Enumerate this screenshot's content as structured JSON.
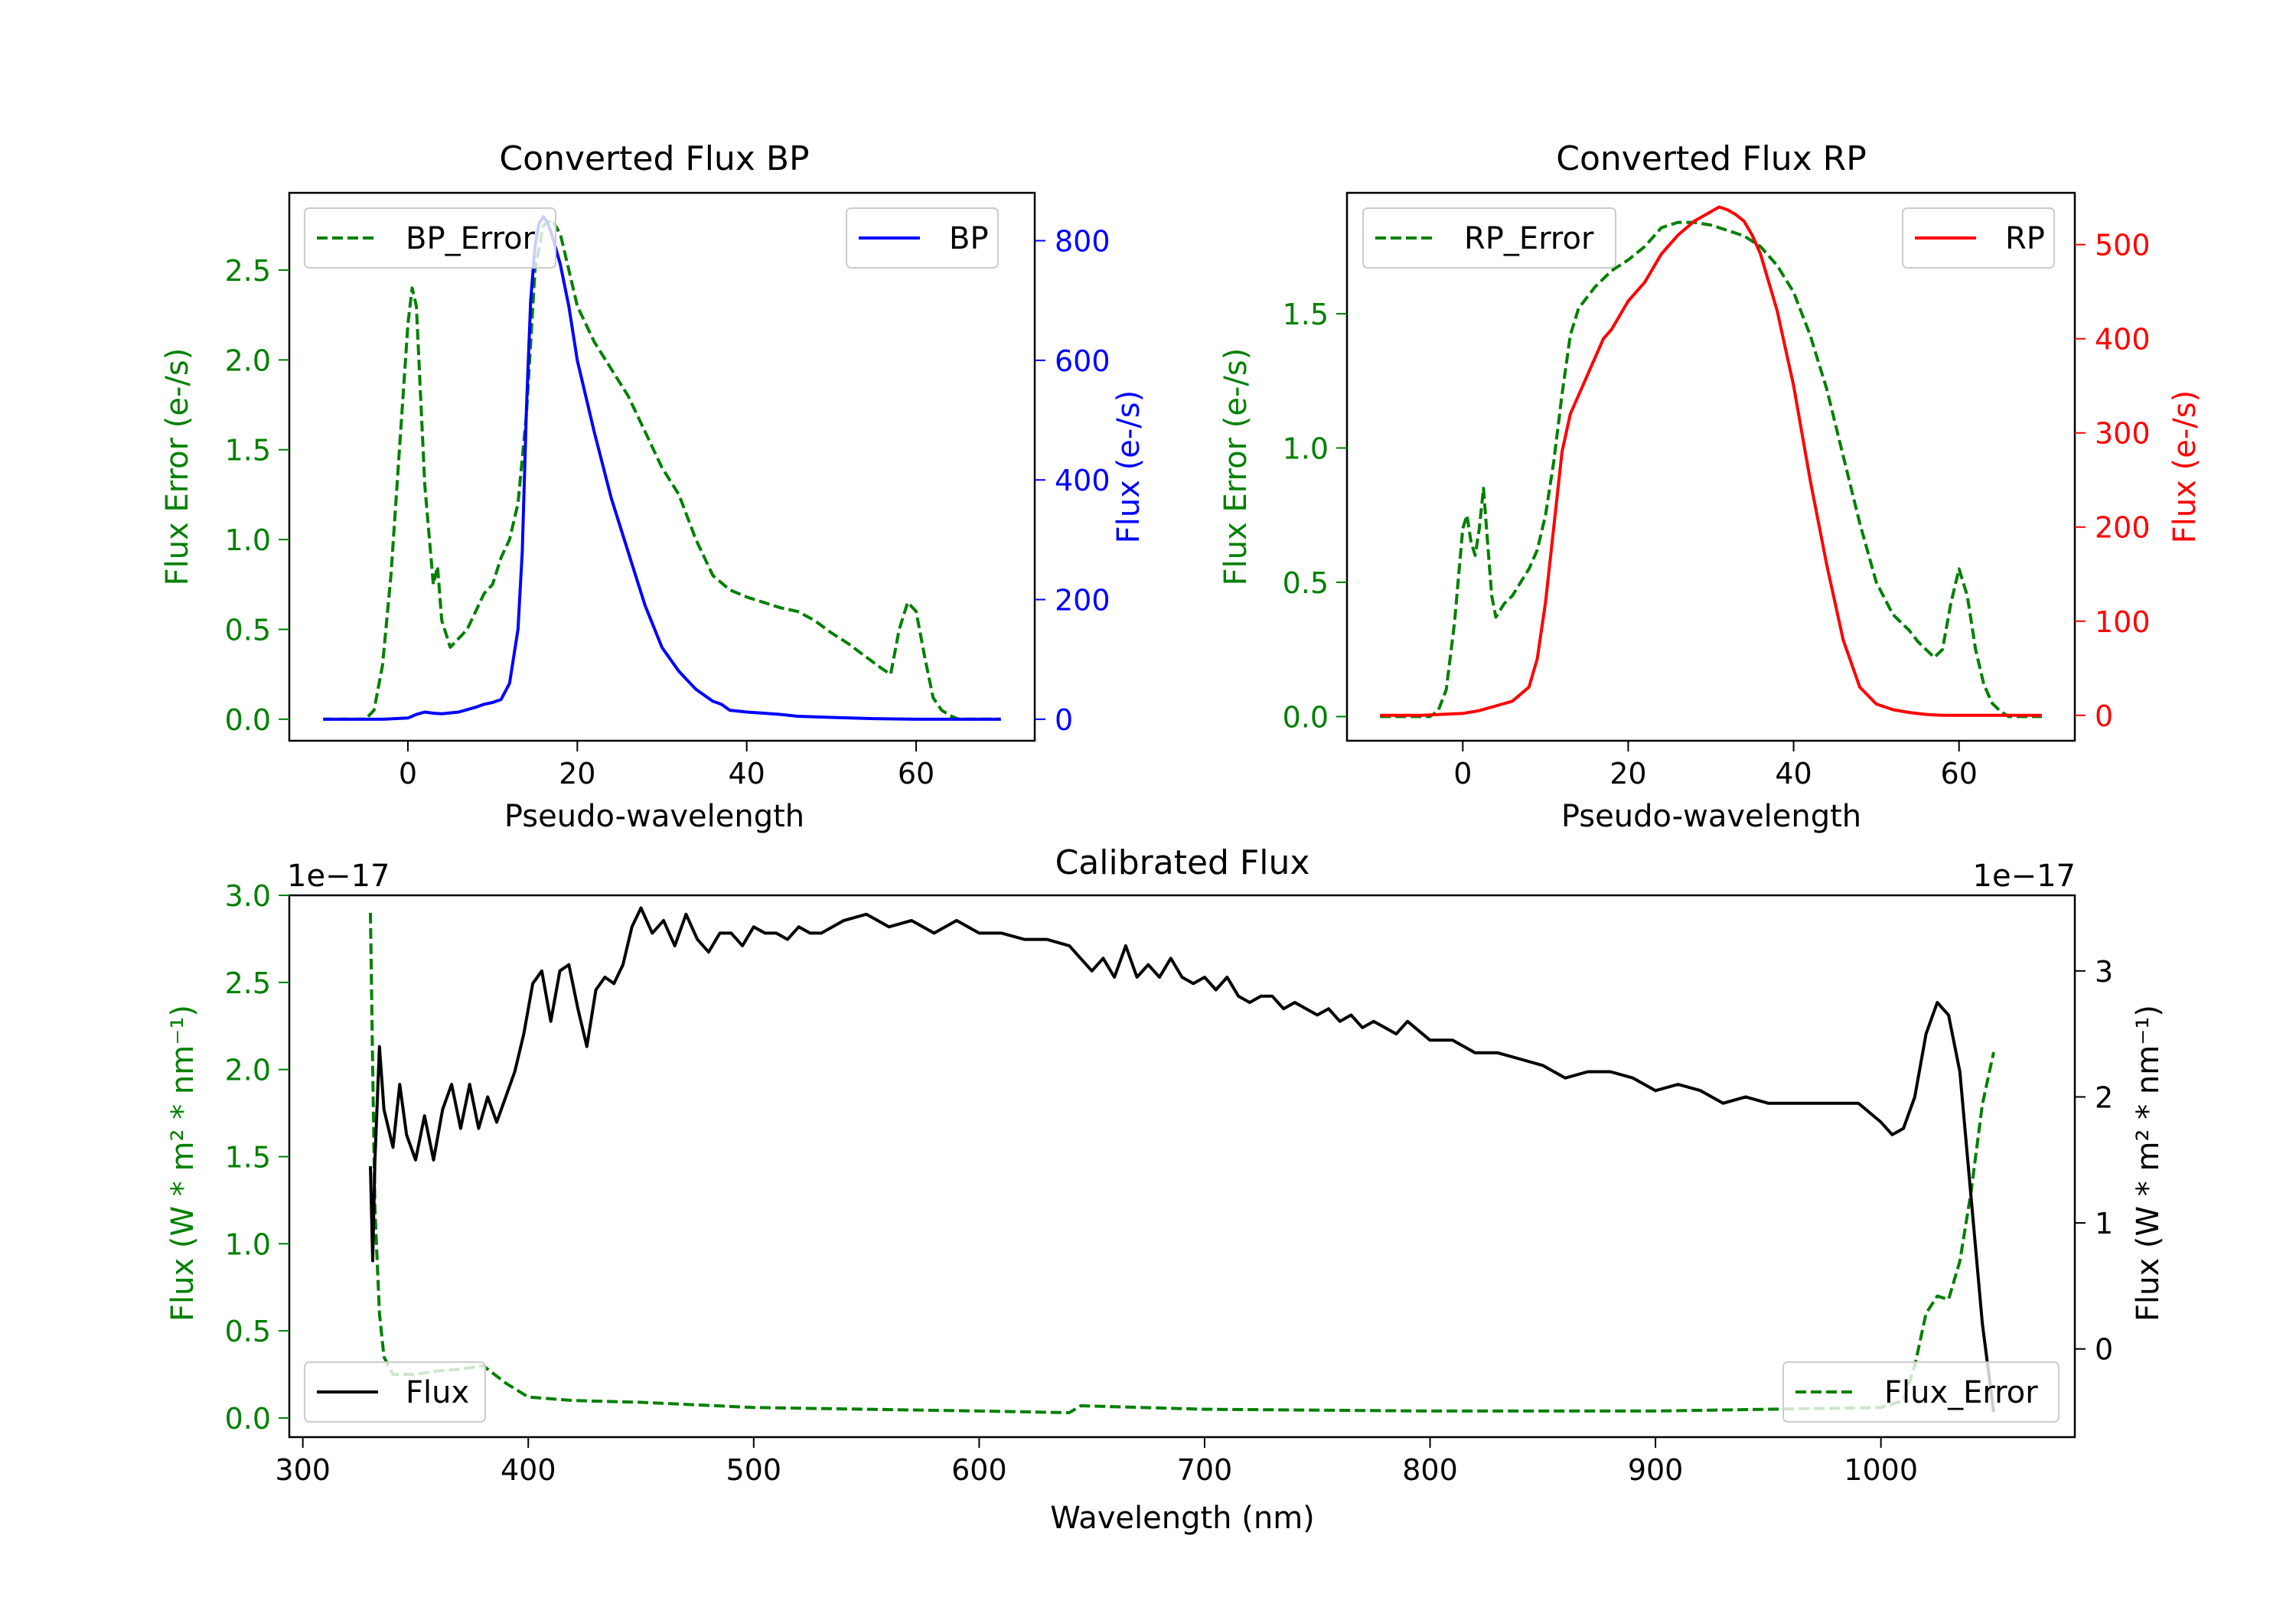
{
  "chart_data": [
    {
      "type": "line",
      "id": "bp",
      "title": "Converted Flux BP",
      "xlabel": "Pseudo-wavelength",
      "ylabel_left": "Flux Error (e-/s)",
      "ylabel_right": "Flux (e-/s)",
      "xlim": [
        -14,
        74
      ],
      "ylim_left": [
        -0.12,
        2.93
      ],
      "ylim_right": [
        -36,
        880
      ],
      "xticks": [
        0,
        20,
        40,
        60
      ],
      "xtick_labels": [
        "0",
        "20",
        "40",
        "60"
      ],
      "yticks_left": [
        0,
        0.5,
        1,
        1.5,
        2,
        2.5
      ],
      "ytick_labels_left": [
        "0.0",
        "0.5",
        "1.0",
        "1.5",
        "2.0",
        "2.5"
      ],
      "yticks_right": [
        0,
        200,
        400,
        600,
        800
      ],
      "ytick_labels_right": [
        "0",
        "200",
        "400",
        "600",
        "800"
      ],
      "colors": {
        "left_axis": "#008000",
        "right_axis": "#0000ff"
      },
      "legend_left": {
        "label": "BP_Error",
        "position": "upper-left"
      },
      "legend_right": {
        "label": "BP",
        "position": "upper-right"
      },
      "series": [
        {
          "name": "BP_Error",
          "axis": "left",
          "color": "#008000",
          "style": "dashed",
          "x": [
            -10,
            -5,
            -4,
            -3,
            -2,
            -1,
            0,
            0.5,
            1,
            2,
            3,
            3.5,
            4,
            5,
            6,
            7,
            8,
            9,
            10,
            11,
            12,
            13,
            14,
            15,
            16,
            17,
            18,
            19,
            20,
            22,
            24,
            26,
            28,
            30,
            32,
            34,
            36,
            38,
            40,
            42,
            44,
            46,
            48,
            50,
            52,
            54,
            56,
            57,
            58,
            59,
            60,
            61,
            62,
            63,
            64,
            65,
            66,
            68,
            70
          ],
          "y": [
            0,
            0,
            0.05,
            0.3,
            0.8,
            1.5,
            2.2,
            2.4,
            2.3,
            1.3,
            0.75,
            0.85,
            0.55,
            0.4,
            0.45,
            0.5,
            0.6,
            0.7,
            0.75,
            0.9,
            1.0,
            1.2,
            1.7,
            2.5,
            2.75,
            2.78,
            2.7,
            2.5,
            2.3,
            2.1,
            1.95,
            1.8,
            1.6,
            1.4,
            1.25,
            1.0,
            0.8,
            0.72,
            0.68,
            0.65,
            0.62,
            0.6,
            0.55,
            0.48,
            0.42,
            0.35,
            0.28,
            0.25,
            0.5,
            0.65,
            0.6,
            0.35,
            0.12,
            0.05,
            0.02,
            0,
            0,
            0,
            0
          ]
        },
        {
          "name": "BP",
          "axis": "right",
          "color": "#0000ff",
          "style": "solid",
          "x": [
            -10,
            -6,
            -3,
            0,
            1,
            2,
            3,
            4,
            6,
            8,
            9,
            10,
            11,
            12,
            13,
            13.5,
            14,
            14.5,
            15,
            15.5,
            16,
            16.5,
            17,
            18,
            19,
            20,
            22,
            24,
            26,
            28,
            30,
            32,
            34,
            36,
            37,
            38,
            40,
            42,
            44,
            46,
            48,
            50,
            55,
            60,
            65,
            70
          ],
          "y": [
            0,
            0,
            0,
            2,
            8,
            12,
            10,
            9,
            12,
            20,
            25,
            28,
            33,
            60,
            150,
            280,
            520,
            700,
            790,
            830,
            840,
            830,
            810,
            760,
            690,
            600,
            480,
            370,
            280,
            190,
            120,
            80,
            50,
            30,
            25,
            15,
            12,
            10,
            8,
            5,
            4,
            3,
            1,
            0,
            0,
            0
          ]
        }
      ]
    },
    {
      "type": "line",
      "id": "rp",
      "title": "Converted Flux RP",
      "xlabel": "Pseudo-wavelength",
      "ylabel_left": "Flux Error (e-/s)",
      "ylabel_right": "Flux (e-/s)",
      "xlim": [
        -14,
        74
      ],
      "ylim_left": [
        -0.09,
        1.95
      ],
      "ylim_right": [
        -27,
        555
      ],
      "xticks": [
        0,
        20,
        40,
        60
      ],
      "xtick_labels": [
        "0",
        "20",
        "40",
        "60"
      ],
      "yticks_left": [
        0,
        0.5,
        1,
        1.5
      ],
      "ytick_labels_left": [
        "0.0",
        "0.5",
        "1.0",
        "1.5"
      ],
      "yticks_right": [
        0,
        100,
        200,
        300,
        400,
        500
      ],
      "ytick_labels_right": [
        "0",
        "100",
        "200",
        "300",
        "400",
        "500"
      ],
      "colors": {
        "left_axis": "#008000",
        "right_axis": "#ff0000"
      },
      "legend_left": {
        "label": "RP_Error",
        "position": "upper-left"
      },
      "legend_right": {
        "label": "RP",
        "position": "upper-right"
      },
      "series": [
        {
          "name": "RP_Error",
          "axis": "left",
          "color": "#008000",
          "style": "dashed",
          "x": [
            -10,
            -4,
            -3,
            -2,
            -1,
            0,
            0.5,
            1,
            1.5,
            2,
            2.5,
            3,
            3.5,
            4,
            5,
            6,
            7,
            8,
            9,
            10,
            11,
            12,
            13,
            14,
            16,
            18,
            20,
            22,
            24,
            26,
            28,
            30,
            32,
            34,
            36,
            38,
            40,
            42,
            44,
            46,
            48,
            50,
            52,
            54,
            55,
            56,
            57,
            58,
            59,
            60,
            61,
            62,
            63,
            64,
            65,
            66,
            68,
            70
          ],
          "y": [
            0,
            0,
            0.02,
            0.1,
            0.35,
            0.7,
            0.75,
            0.65,
            0.6,
            0.7,
            0.85,
            0.65,
            0.45,
            0.37,
            0.42,
            0.45,
            0.5,
            0.55,
            0.62,
            0.75,
            0.95,
            1.2,
            1.42,
            1.52,
            1.6,
            1.66,
            1.7,
            1.75,
            1.82,
            1.84,
            1.84,
            1.83,
            1.81,
            1.79,
            1.75,
            1.68,
            1.58,
            1.42,
            1.22,
            0.97,
            0.72,
            0.5,
            0.38,
            0.32,
            0.28,
            0.25,
            0.22,
            0.25,
            0.42,
            0.55,
            0.45,
            0.25,
            0.12,
            0.05,
            0.02,
            0,
            0,
            0
          ]
        },
        {
          "name": "RP",
          "axis": "right",
          "color": "#ff0000",
          "style": "solid",
          "x": [
            -10,
            -5,
            0,
            2,
            4,
            6,
            8,
            9,
            10,
            11,
            12,
            13,
            14,
            15,
            16,
            17,
            18,
            20,
            22,
            24,
            26,
            28,
            30,
            31,
            32,
            33,
            34,
            35,
            36,
            38,
            40,
            42,
            44,
            46,
            48,
            50,
            52,
            54,
            56,
            58,
            60,
            62,
            64,
            66,
            68,
            70
          ],
          "y": [
            0,
            0,
            2,
            5,
            10,
            15,
            30,
            60,
            120,
            200,
            280,
            320,
            340,
            360,
            380,
            400,
            410,
            440,
            460,
            490,
            510,
            525,
            535,
            540,
            537,
            532,
            525,
            510,
            490,
            430,
            350,
            250,
            160,
            80,
            30,
            12,
            6,
            3,
            1,
            0,
            0,
            0,
            0,
            0,
            0,
            0
          ]
        }
      ]
    },
    {
      "type": "line",
      "id": "calibrated",
      "title": "Calibrated Flux",
      "xlabel": "Wavelength (nm)",
      "ylabel_left": "Flux (W * m² * nm⁻¹)",
      "ylabel_right": "Flux (W * m² * nm⁻¹)",
      "offset_text_left": "1e−17",
      "offset_text_right": "1e−17",
      "xlim": [
        294,
        1086
      ],
      "ylim_left": [
        -0.11,
        3.0
      ],
      "ylim_right": [
        -0.7,
        3.6
      ],
      "xticks": [
        300,
        400,
        500,
        600,
        700,
        800,
        900,
        1000
      ],
      "xtick_labels": [
        "300",
        "400",
        "500",
        "600",
        "700",
        "800",
        "900",
        "1000"
      ],
      "yticks_left": [
        0,
        0.5,
        1,
        1.5,
        2,
        2.5,
        3
      ],
      "ytick_labels_left": [
        "0.0",
        "0.5",
        "1.0",
        "1.5",
        "2.0",
        "2.5",
        "3.0"
      ],
      "yticks_right": [
        0,
        1,
        2,
        3
      ],
      "ytick_labels_right": [
        "0",
        "1",
        "2",
        "3"
      ],
      "colors": {
        "left_axis": "#008000",
        "right_axis": "#000000"
      },
      "legend_left": {
        "label": "Flux",
        "position": "lower-left"
      },
      "legend_right": {
        "label": "Flux_Error",
        "position": "lower-right"
      },
      "series": [
        {
          "name": "Flux_Error",
          "axis": "left",
          "color": "#008000",
          "style": "dashed",
          "x": [
            330,
            331,
            332,
            334,
            336,
            340,
            350,
            360,
            370,
            380,
            390,
            400,
            420,
            450,
            500,
            550,
            600,
            640,
            645,
            700,
            800,
            900,
            950,
            1000,
            1010,
            1015,
            1020,
            1025,
            1030,
            1035,
            1040,
            1045,
            1050
          ],
          "y": [
            2.9,
            2.0,
            1.2,
            0.6,
            0.35,
            0.25,
            0.25,
            0.27,
            0.28,
            0.3,
            0.2,
            0.12,
            0.1,
            0.09,
            0.06,
            0.05,
            0.04,
            0.03,
            0.07,
            0.05,
            0.04,
            0.04,
            0.05,
            0.06,
            0.1,
            0.3,
            0.6,
            0.7,
            0.68,
            0.9,
            1.3,
            1.8,
            2.1
          ]
        },
        {
          "name": "Flux",
          "axis": "right",
          "color": "#000000",
          "style": "solid",
          "x": [
            330,
            331,
            332,
            334,
            336,
            340,
            343,
            346,
            350,
            354,
            358,
            362,
            366,
            370,
            374,
            378,
            382,
            386,
            390,
            394,
            398,
            402,
            406,
            410,
            414,
            418,
            422,
            426,
            430,
            434,
            438,
            442,
            446,
            450,
            455,
            460,
            465,
            470,
            475,
            480,
            485,
            490,
            495,
            500,
            505,
            510,
            515,
            520,
            525,
            530,
            540,
            550,
            560,
            570,
            580,
            590,
            600,
            610,
            620,
            630,
            640,
            645,
            650,
            655,
            660,
            665,
            670,
            675,
            680,
            685,
            690,
            695,
            700,
            705,
            710,
            715,
            720,
            725,
            730,
            735,
            740,
            745,
            750,
            755,
            760,
            765,
            770,
            775,
            780,
            785,
            790,
            800,
            810,
            820,
            830,
            840,
            850,
            860,
            870,
            880,
            890,
            900,
            910,
            920,
            930,
            940,
            950,
            960,
            970,
            980,
            990,
            1000,
            1005,
            1010,
            1015,
            1020,
            1025,
            1030,
            1035,
            1040,
            1045,
            1050
          ],
          "y": [
            1.45,
            0.7,
            1.5,
            2.4,
            1.9,
            1.6,
            2.1,
            1.7,
            1.5,
            1.85,
            1.5,
            1.9,
            2.1,
            1.75,
            2.1,
            1.75,
            2.0,
            1.8,
            2.0,
            2.2,
            2.5,
            2.9,
            3.0,
            2.6,
            3.0,
            3.05,
            2.7,
            2.4,
            2.85,
            2.95,
            2.9,
            3.05,
            3.35,
            3.5,
            3.3,
            3.4,
            3.2,
            3.45,
            3.25,
            3.15,
            3.3,
            3.3,
            3.2,
            3.35,
            3.3,
            3.3,
            3.25,
            3.35,
            3.3,
            3.3,
            3.4,
            3.45,
            3.35,
            3.4,
            3.3,
            3.4,
            3.3,
            3.3,
            3.25,
            3.25,
            3.2,
            3.1,
            3.0,
            3.1,
            2.95,
            3.2,
            2.95,
            3.05,
            2.95,
            3.1,
            2.95,
            2.9,
            2.95,
            2.85,
            2.95,
            2.8,
            2.75,
            2.8,
            2.8,
            2.7,
            2.75,
            2.7,
            2.65,
            2.7,
            2.6,
            2.65,
            2.55,
            2.6,
            2.55,
            2.5,
            2.6,
            2.45,
            2.45,
            2.35,
            2.35,
            2.3,
            2.25,
            2.15,
            2.2,
            2.2,
            2.15,
            2.05,
            2.1,
            2.05,
            1.95,
            2.0,
            1.95,
            1.95,
            1.95,
            1.95,
            1.95,
            1.8,
            1.7,
            1.75,
            2.0,
            2.5,
            2.75,
            2.65,
            2.2,
            1.2,
            0.2,
            -0.5
          ]
        }
      ]
    }
  ]
}
